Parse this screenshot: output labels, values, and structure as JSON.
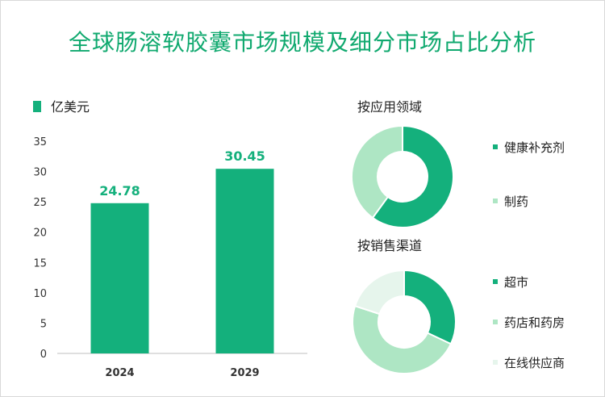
{
  "title": "全球肠溶软胶囊市场规模及细分市场占比分析",
  "chart_data": [
    {
      "type": "bar",
      "legend_label": "亿美元",
      "categories": [
        "2024",
        "2029"
      ],
      "values": [
        24.78,
        30.45
      ],
      "value_labels": [
        "24.78",
        "30.45"
      ],
      "yticks": [
        "0",
        "5",
        "10",
        "15",
        "20",
        "25",
        "30",
        "35"
      ],
      "ylim": [
        0,
        35
      ],
      "color": "#14b07c",
      "label_color": "#14b07c"
    },
    {
      "type": "pie",
      "title": "按应用领域",
      "donut": true,
      "labels": [
        "健康补充剂",
        "制药"
      ],
      "values": [
        60,
        40
      ],
      "colors": [
        "#14b07c",
        "#aee6c4"
      ]
    },
    {
      "type": "pie",
      "title": "按销售渠道",
      "donut": true,
      "labels": [
        "超市",
        "药店和药房",
        "在线供应商"
      ],
      "values": [
        32,
        48,
        20
      ],
      "colors": [
        "#14b07c",
        "#aee6c4",
        "#e6f5ec"
      ]
    }
  ]
}
